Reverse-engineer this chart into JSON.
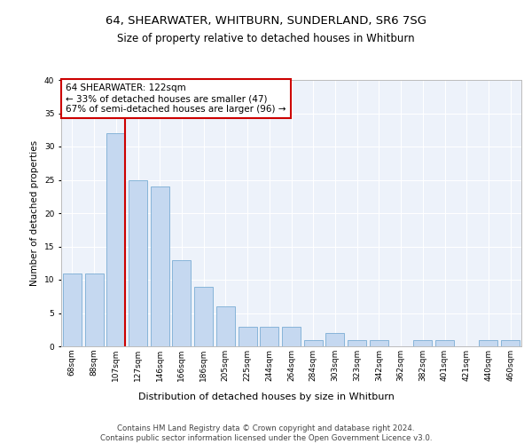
{
  "title1": "64, SHEARWATER, WHITBURN, SUNDERLAND, SR6 7SG",
  "title2": "Size of property relative to detached houses in Whitburn",
  "xlabel": "Distribution of detached houses by size in Whitburn",
  "ylabel": "Number of detached properties",
  "categories": [
    "68sqm",
    "88sqm",
    "107sqm",
    "127sqm",
    "146sqm",
    "166sqm",
    "186sqm",
    "205sqm",
    "225sqm",
    "244sqm",
    "264sqm",
    "284sqm",
    "303sqm",
    "323sqm",
    "342sqm",
    "362sqm",
    "382sqm",
    "401sqm",
    "421sqm",
    "440sqm",
    "460sqm"
  ],
  "values": [
    11,
    11,
    32,
    25,
    24,
    13,
    9,
    6,
    3,
    3,
    3,
    1,
    2,
    1,
    1,
    0,
    1,
    1,
    0,
    1,
    1
  ],
  "bar_color": "#c5d8f0",
  "bar_edge_color": "#7aadd4",
  "vline_color": "#cc0000",
  "annotation_text": "64 SHEARWATER: 122sqm\n← 33% of detached houses are smaller (47)\n67% of semi-detached houses are larger (96) →",
  "annotation_box_color": "#cc0000",
  "background_color": "#edf2fa",
  "ylim": [
    0,
    40
  ],
  "yticks": [
    0,
    5,
    10,
    15,
    20,
    25,
    30,
    35,
    40
  ],
  "footer": "Contains HM Land Registry data © Crown copyright and database right 2024.\nContains public sector information licensed under the Open Government Licence v3.0.",
  "title1_fontsize": 9.5,
  "title2_fontsize": 8.5,
  "xlabel_fontsize": 8,
  "ylabel_fontsize": 7.5,
  "tick_fontsize": 6.5,
  "annotation_fontsize": 7.5,
  "footer_fontsize": 6.2
}
